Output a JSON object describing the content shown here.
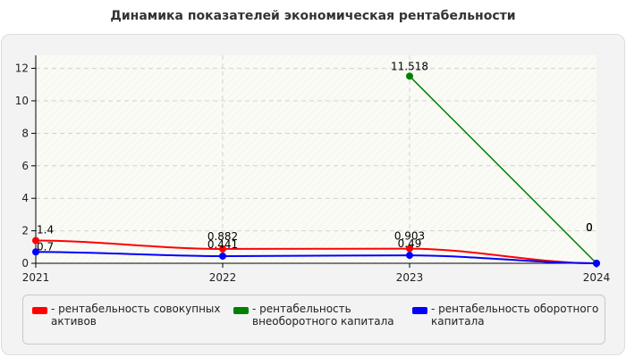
{
  "chart_data": {
    "type": "line",
    "title": "Динамика показателей экономическая рентабельности",
    "x": [
      "2021",
      "2022",
      "2023",
      "2024"
    ],
    "ylim": [
      0,
      12.8
    ],
    "yticks": [
      "0",
      "2",
      "4",
      "6",
      "8",
      "10",
      "12"
    ],
    "grid": true,
    "legend_position": "bottom",
    "series": [
      {
        "name": "- рентабельность совокупных активов",
        "name_lines": [
          "- рентабельность совокупных",
          "активов"
        ],
        "color": "#ff0000",
        "values": [
          1.4,
          0.882,
          0.903,
          0
        ],
        "labels": [
          "1.4",
          "0.882",
          "0.903",
          "0"
        ]
      },
      {
        "name": "- рентабельность внеоборотного капитала",
        "name_lines": [
          "- рентабельность",
          "внеоборотного капитала"
        ],
        "color": "#008000",
        "values": [
          null,
          null,
          11.518,
          0
        ],
        "labels": [
          null,
          null,
          "11.518",
          "0"
        ]
      },
      {
        "name": "- рентабельность оборотного капитала",
        "name_lines": [
          "- рентабельность оборотного",
          "капитала"
        ],
        "color": "#0000ff",
        "values": [
          0.7,
          0.441,
          0.49,
          0
        ],
        "labels": [
          "0.7",
          "0.441",
          "0.49",
          "0"
        ]
      }
    ]
  }
}
